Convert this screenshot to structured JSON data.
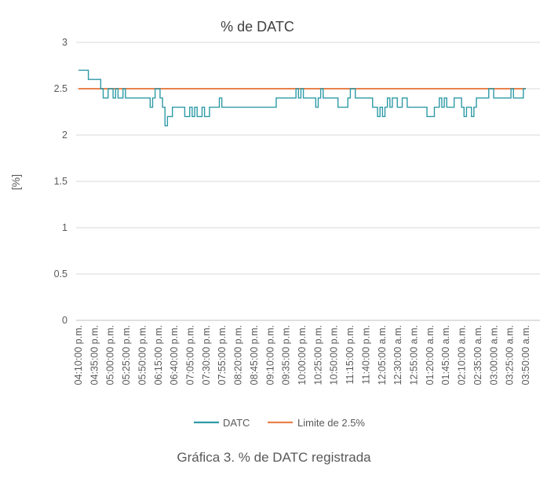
{
  "chart_data": {
    "type": "line",
    "title": "% de DATC",
    "ylabel": "[%]",
    "xlabel": "",
    "caption": "Gráfica 3. % de DATC registrada",
    "ylim": [
      0,
      3
    ],
    "y_ticks": [
      "0",
      "0.5",
      "1",
      "1.5",
      "2",
      "2.5",
      "3"
    ],
    "grid": true,
    "legend_position": "bottom",
    "x_tick_labels": [
      "04:10:00 p.m.",
      "04:35:00 p.m.",
      "05:00:00 p.m.",
      "05:25:00 p.m.",
      "05:50:00 p.m.",
      "06:15:00 p.m.",
      "06:40:00 p.m.",
      "07:05:00 p.m.",
      "07:30:00 p.m.",
      "07:55:00 p.m.",
      "08:20:00 p.m.",
      "08:45:00 p.m.",
      "09:10:00 p.m.",
      "09:35:00 p.m.",
      "10:00:00 p.m.",
      "10:25:00 p.m.",
      "10:50:00 p.m.",
      "11:15:00 p.m.",
      "11:40:00 p.m.",
      "12:05:00 a.m.",
      "12:30:00 a.m.",
      "12:55:00 a.m.",
      "01:20:00 a.m.",
      "01:45:00 a.m.",
      "02:10:00 a.m.",
      "02:35:00 a.m.",
      "03:00:00 a.m.",
      "03:25:00 a.m.",
      "03:50:00 a.m."
    ],
    "series": [
      {
        "name": "DATC",
        "color": "#2E9AA6",
        "values": [
          2.7,
          2.7,
          2.7,
          2.7,
          2.7,
          2.6,
          2.6,
          2.6,
          2.6,
          2.6,
          2.5,
          2.4,
          2.4,
          2.5,
          2.5,
          2.4,
          2.5,
          2.4,
          2.4,
          2.5,
          2.4,
          2.4,
          2.4,
          2.4,
          2.4,
          2.4,
          2.4,
          2.4,
          2.4,
          2.4,
          2.3,
          2.4,
          2.5,
          2.5,
          2.4,
          2.3,
          2.1,
          2.2,
          2.2,
          2.3,
          2.3,
          2.3,
          2.3,
          2.3,
          2.2,
          2.2,
          2.3,
          2.2,
          2.3,
          2.2,
          2.2,
          2.3,
          2.2,
          2.2,
          2.3,
          2.3,
          2.3,
          2.3,
          2.4,
          2.3,
          2.3,
          2.3,
          2.3,
          2.3,
          2.3,
          2.3,
          2.3,
          2.3,
          2.3,
          2.3,
          2.3,
          2.3,
          2.3,
          2.3,
          2.3,
          2.3,
          2.3,
          2.3,
          2.3,
          2.3,
          2.3,
          2.4,
          2.4,
          2.4,
          2.4,
          2.4,
          2.4,
          2.4,
          2.4,
          2.5,
          2.4,
          2.5,
          2.4,
          2.4,
          2.4,
          2.4,
          2.4,
          2.3,
          2.4,
          2.5,
          2.4,
          2.4,
          2.4,
          2.4,
          2.4,
          2.4,
          2.3,
          2.3,
          2.3,
          2.3,
          2.4,
          2.5,
          2.5,
          2.4,
          2.4,
          2.4,
          2.4,
          2.4,
          2.4,
          2.4,
          2.3,
          2.3,
          2.2,
          2.3,
          2.2,
          2.3,
          2.4,
          2.3,
          2.4,
          2.4,
          2.3,
          2.3,
          2.4,
          2.4,
          2.3,
          2.3,
          2.3,
          2.3,
          2.3,
          2.3,
          2.3,
          2.3,
          2.2,
          2.2,
          2.2,
          2.3,
          2.3,
          2.4,
          2.3,
          2.4,
          2.3,
          2.3,
          2.3,
          2.4,
          2.4,
          2.4,
          2.3,
          2.2,
          2.3,
          2.3,
          2.2,
          2.3,
          2.4,
          2.4,
          2.4,
          2.4,
          2.4,
          2.5,
          2.5,
          2.4,
          2.4,
          2.4,
          2.4,
          2.4,
          2.4,
          2.4,
          2.5,
          2.4,
          2.4,
          2.4,
          2.4,
          2.5
        ]
      },
      {
        "name": "Limite de 2.5%",
        "color": "#E8814D",
        "values_constant": 2.5
      }
    ]
  }
}
